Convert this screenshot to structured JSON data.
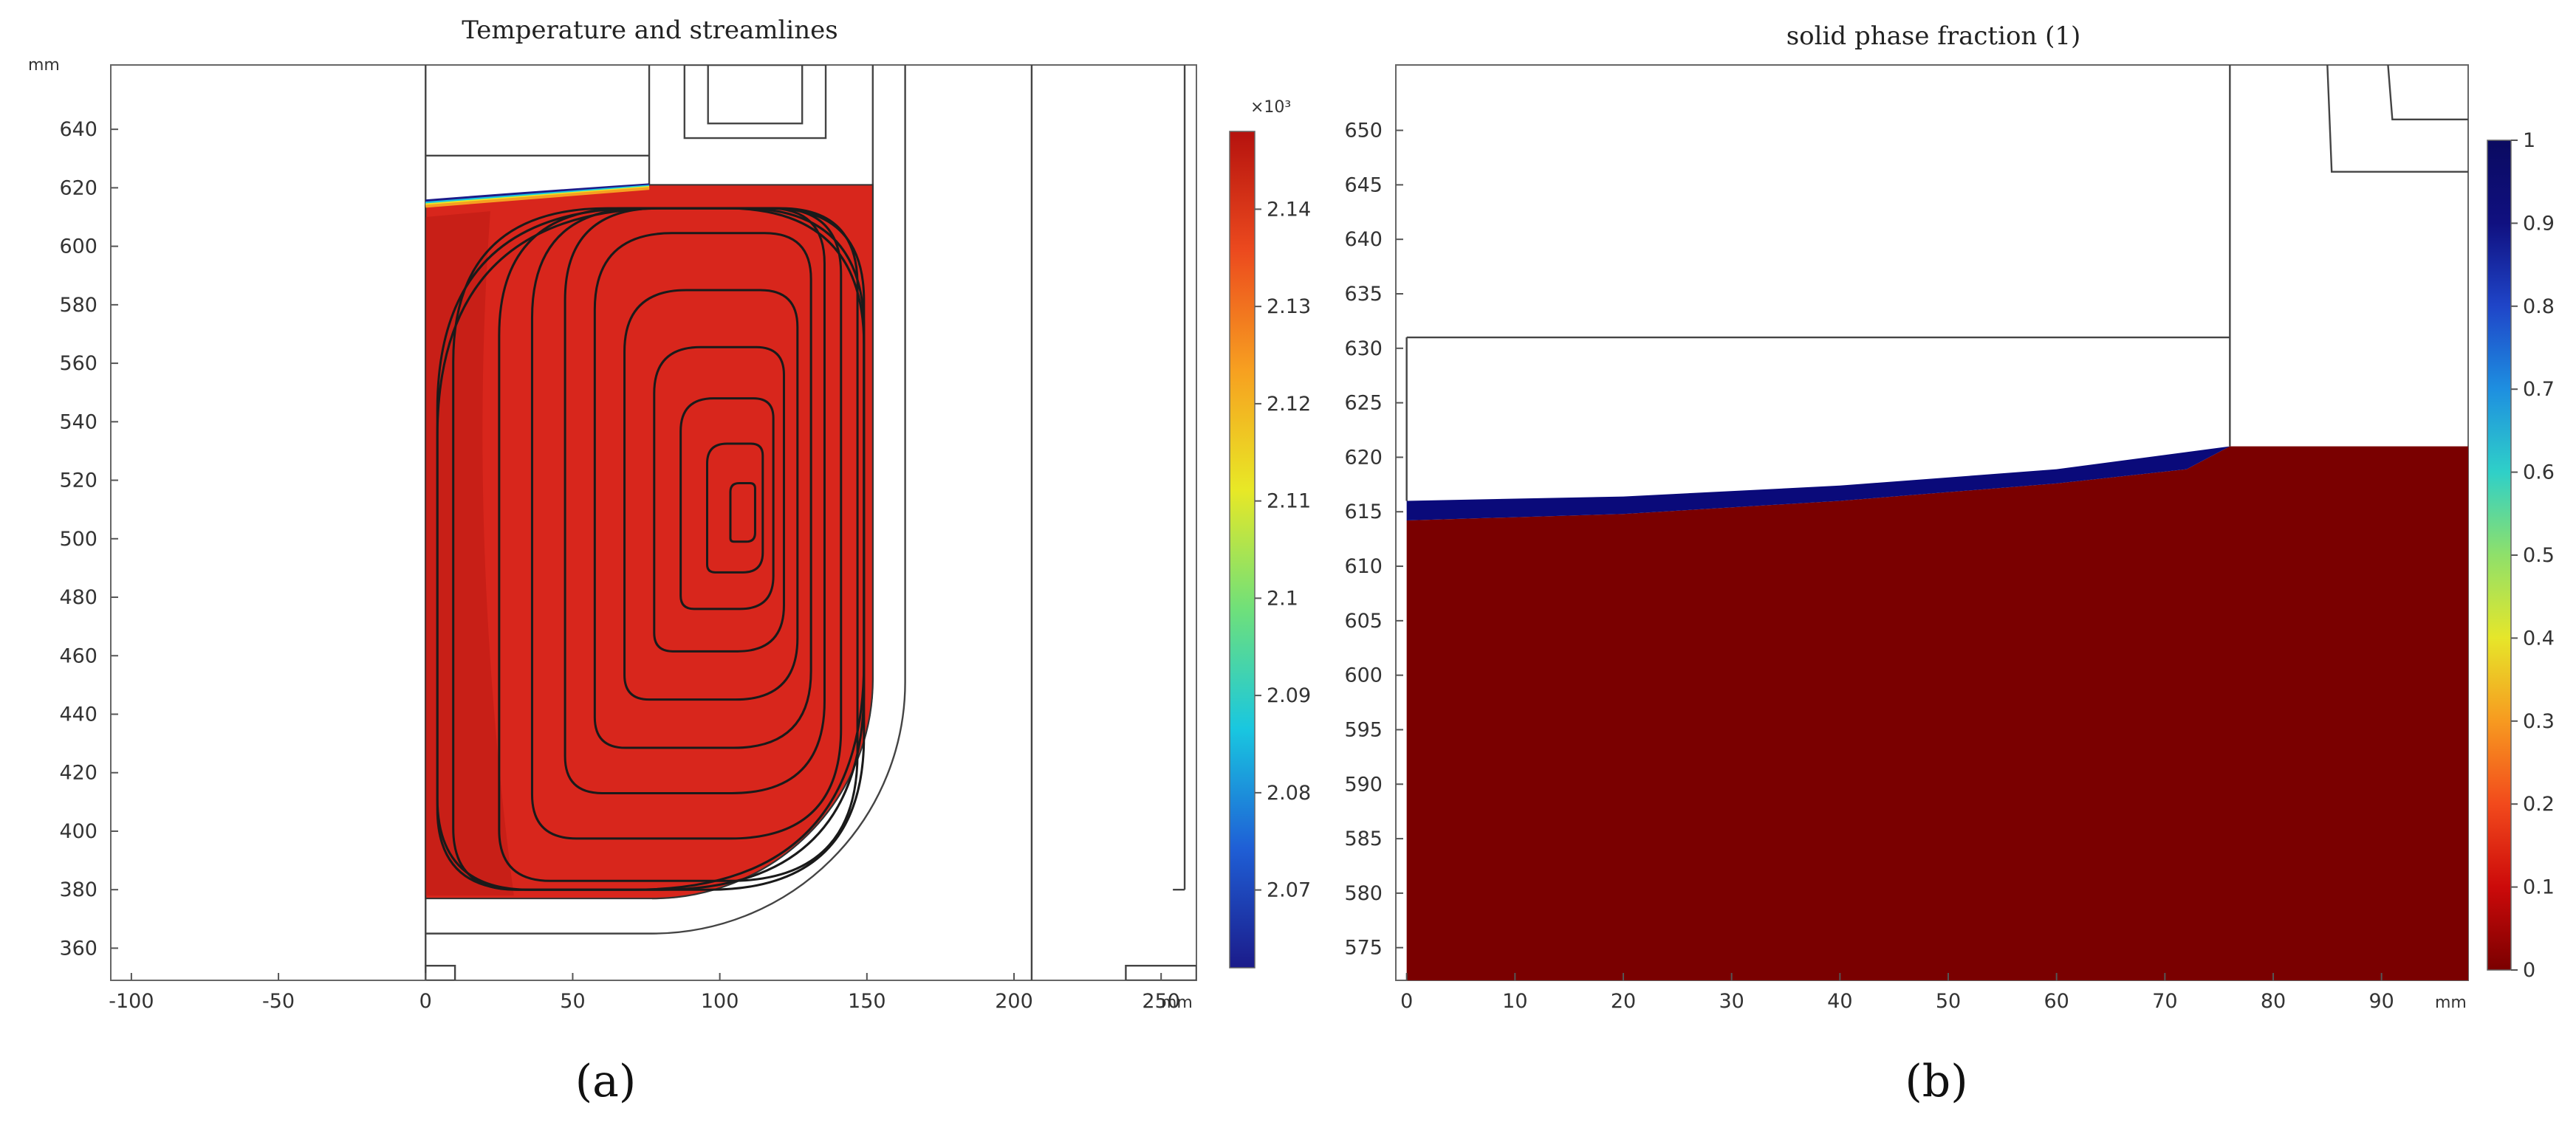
{
  "chart_data": [
    {
      "type": "heatmap",
      "panel": "a",
      "panel_label": "(a)",
      "title": "Temperature and streamlines",
      "xlabel": "mm",
      "ylabel": "mm",
      "x_unit": "mm",
      "y_unit": "mm",
      "xlim": [
        -107,
        262
      ],
      "ylim": [
        349,
        662
      ],
      "x_ticks": [
        -100,
        -50,
        0,
        50,
        100,
        150,
        200,
        250
      ],
      "y_ticks": [
        360,
        380,
        400,
        420,
        440,
        460,
        480,
        500,
        520,
        540,
        560,
        580,
        600,
        620,
        640
      ],
      "field": "temperature",
      "field_value_approx": 2.145,
      "melt_region": {
        "x": [
          0,
          152
        ],
        "y": [
          377,
          621
        ],
        "corner_radius": 75
      },
      "solidified_shell_edge": {
        "x": [
          0,
          76
        ],
        "y": [
          614,
          621
        ]
      },
      "vortex_center": [
        108,
        509
      ],
      "colorbar": {
        "multiplier": "×10³",
        "ticks": [
          2.07,
          2.08,
          2.09,
          2.1,
          2.11,
          2.12,
          2.13,
          2.14
        ],
        "tick_labels": [
          "2.07",
          "2.08",
          "2.09",
          "2.1",
          "2.11",
          "2.12",
          "2.13",
          "2.14"
        ],
        "range": [
          2.062,
          2.148
        ],
        "colormap": "rainbow",
        "colors": [
          "#1b1b8a",
          "#1f5fd6",
          "#19c7e0",
          "#6fe07a",
          "#e8e826",
          "#f7a020",
          "#ec4a1e",
          "#b5120e"
        ]
      }
    },
    {
      "type": "heatmap",
      "panel": "b",
      "panel_label": "(b)",
      "title": "solid  phase fraction (1)",
      "xlabel": "mm",
      "x_unit": "mm",
      "xlim": [
        -1,
        98
      ],
      "ylim": [
        572,
        656
      ],
      "x_ticks": [
        0,
        10,
        20,
        30,
        40,
        50,
        60,
        70,
        80,
        90
      ],
      "y_ticks": [
        575,
        580,
        585,
        590,
        595,
        600,
        605,
        610,
        615,
        620,
        625,
        630,
        635,
        640,
        645,
        650
      ],
      "field": "solid phase fraction",
      "liquid_value": 0,
      "solid_value": 1,
      "liquid_top_surface": [
        [
          0,
          614.2
        ],
        [
          20,
          614.8
        ],
        [
          40,
          616
        ],
        [
          60,
          617.6
        ],
        [
          72,
          618.9
        ],
        [
          76,
          621
        ]
      ],
      "solid_layer_top": [
        [
          0,
          616
        ],
        [
          20,
          616.4
        ],
        [
          40,
          617.4
        ],
        [
          60,
          618.9
        ],
        [
          76,
          621
        ]
      ],
      "level_right": 621,
      "colorbar": {
        "ticks": [
          0,
          0.1,
          0.2,
          0.3,
          0.4,
          0.5,
          0.6,
          0.7,
          0.8,
          0.9,
          1
        ],
        "tick_labels": [
          "0",
          "0.1",
          "0.2",
          "0.3",
          "0.4",
          "0.5",
          "0.6",
          "0.7",
          "0.8",
          "0.9",
          "1"
        ],
        "range": [
          0,
          1
        ],
        "colormap": "rainbow",
        "colors": [
          "#7a0000",
          "#cc0a0a",
          "#f24a1c",
          "#f79a20",
          "#e6e62a",
          "#8fe06a",
          "#2fd0c8",
          "#1e8fe0",
          "#1f45c8",
          "#101080",
          "#0a0a60"
        ]
      }
    }
  ]
}
